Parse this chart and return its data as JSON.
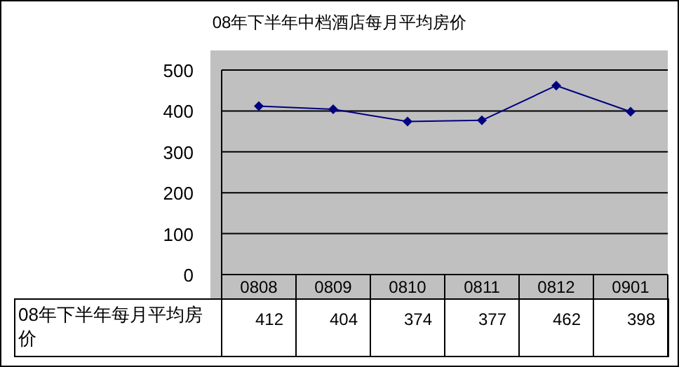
{
  "chart_data": {
    "type": "line",
    "title": "08年下半年中档酒店每月平均房价",
    "categories": [
      "0808",
      "0809",
      "0810",
      "0811",
      "0812",
      "0901"
    ],
    "series": [
      {
        "name": "08年下半年每月平均房价",
        "color": "#000080",
        "values": [
          412,
          404,
          374,
          377,
          462,
          398
        ]
      }
    ],
    "ylim": [
      0,
      500
    ],
    "yticks": [
      0,
      100,
      200,
      300,
      400,
      500
    ],
    "grid": "y",
    "marker": "diamond",
    "line_style": "solid",
    "data_labels": true
  }
}
